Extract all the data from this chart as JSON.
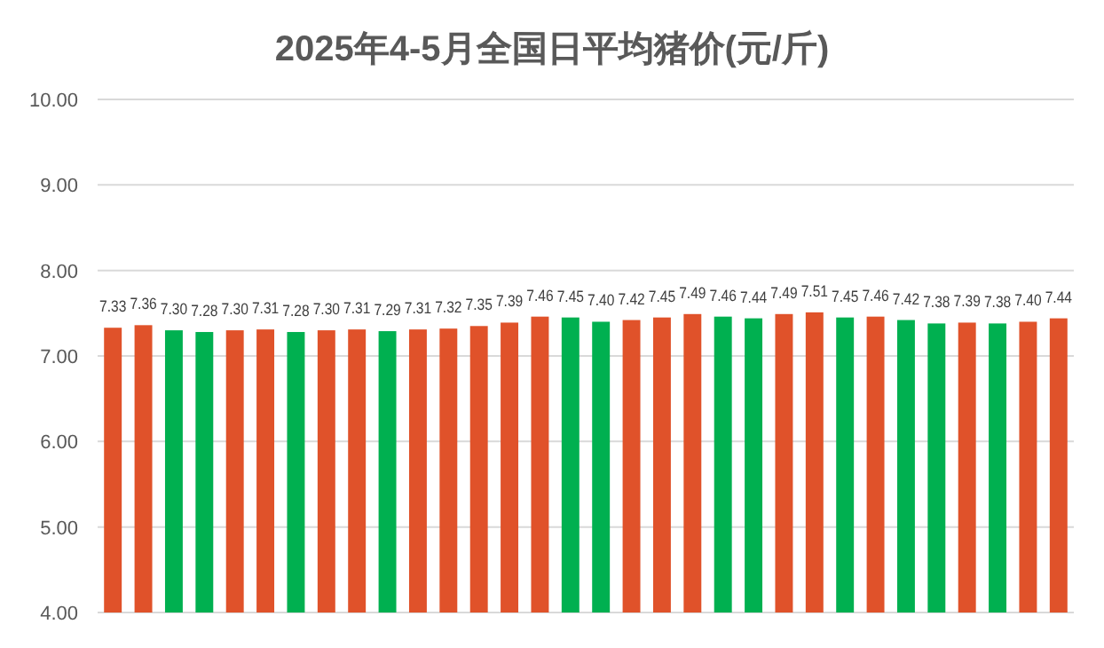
{
  "chart_data": {
    "type": "bar",
    "title": "2025年4-5月全国日平均猪价(元/斤)",
    "categories": [
      null,
      null,
      null,
      null,
      null,
      null,
      null,
      null,
      null,
      null,
      null,
      null,
      null,
      null,
      null,
      null,
      null,
      null,
      null,
      null,
      null,
      null,
      null,
      null,
      null,
      null,
      null,
      null,
      null,
      null,
      null,
      null
    ],
    "values": [
      7.33,
      7.36,
      7.3,
      7.28,
      7.3,
      7.31,
      7.28,
      7.3,
      7.31,
      7.29,
      7.31,
      7.32,
      7.35,
      7.39,
      7.46,
      7.45,
      7.4,
      7.42,
      7.45,
      7.49,
      7.46,
      7.44,
      7.49,
      7.51,
      7.45,
      7.46,
      7.42,
      7.38,
      7.39,
      7.38,
      7.4,
      7.44
    ],
    "value_labels": [
      "7.33",
      "7.36",
      "7.30",
      "7.28",
      "7.30",
      "7.31",
      "7.28",
      "7.30",
      "7.31",
      "7.29",
      "7.31",
      "7.32",
      "7.35",
      "7.39",
      "7.46",
      "7.45",
      "7.40",
      "7.42",
      "7.45",
      "7.49",
      "7.46",
      "7.44",
      "7.49",
      "7.51",
      "7.45",
      "7.46",
      "7.42",
      "7.38",
      "7.39",
      "7.38",
      "7.40",
      "7.44"
    ],
    "colors": [
      "#e0522a",
      "#e0522a",
      "#00b050",
      "#00b050",
      "#e0522a",
      "#e0522a",
      "#00b050",
      "#e0522a",
      "#e0522a",
      "#00b050",
      "#e0522a",
      "#e0522a",
      "#e0522a",
      "#e0522a",
      "#e0522a",
      "#00b050",
      "#00b050",
      "#e0522a",
      "#e0522a",
      "#e0522a",
      "#00b050",
      "#00b050",
      "#e0522a",
      "#e0522a",
      "#00b050",
      "#e0522a",
      "#00b050",
      "#00b050",
      "#e0522a",
      "#00b050",
      "#e0522a",
      "#e0522a"
    ],
    "ylim": [
      4,
      10
    ],
    "yticks": [
      {
        "value": 4,
        "label": "4.00"
      },
      {
        "value": 5,
        "label": "5.00"
      },
      {
        "value": 6,
        "label": "6.00"
      },
      {
        "value": 7,
        "label": "7.00"
      },
      {
        "value": 8,
        "label": "8.00"
      },
      {
        "value": 9,
        "label": "9.00"
      },
      {
        "value": 10,
        "label": "10.00"
      }
    ],
    "grid": "y"
  }
}
